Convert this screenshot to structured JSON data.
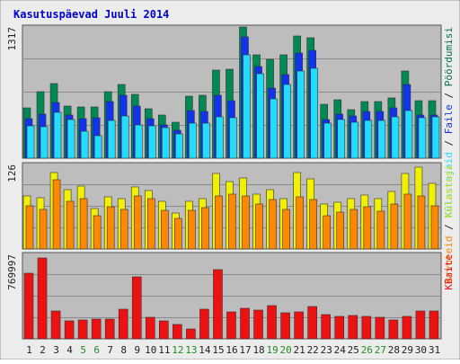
{
  "title": "Kasutuspäevad Juuli 2014",
  "colors": {
    "frame": "#ececec",
    "panel": "#bdbdbd",
    "grid": "#8a8a8a",
    "title": "#0000cc",
    "weekend_day": "#228b22",
    "weekday": "#222222",
    "pages_ink": "#006f4a",
    "hits": "#ff8800",
    "sites": "#f0f000"
  },
  "chart_data": [
    {
      "type": "bar",
      "panel": "visits",
      "ytick_label": "1317",
      "ymax": 1317,
      "x": [
        "1",
        "2",
        "3",
        "4",
        "5",
        "6",
        "7",
        "8",
        "9",
        "10",
        "11",
        "12",
        "13",
        "14",
        "15",
        "16",
        "17",
        "18",
        "19",
        "20",
        "21",
        "22",
        "23",
        "24",
        "25",
        "26",
        "27",
        "28",
        "29",
        "30",
        "31"
      ],
      "weekend_days": [
        "5",
        "6",
        "12",
        "13",
        "19",
        "20",
        "26",
        "27"
      ],
      "series": [
        {
          "name": "Pöördumisi",
          "color": "#008855",
          "values": [
            500,
            660,
            740,
            520,
            510,
            510,
            660,
            730,
            630,
            490,
            430,
            360,
            610,
            620,
            870,
            880,
            1300,
            1020,
            980,
            1020,
            1210,
            1190,
            530,
            580,
            480,
            560,
            560,
            600,
            860,
            570,
            570
          ]
        },
        {
          "name": "Faile",
          "color": "#1133ee",
          "values": [
            390,
            440,
            550,
            430,
            390,
            400,
            560,
            620,
            520,
            390,
            330,
            280,
            470,
            460,
            620,
            570,
            1200,
            910,
            690,
            830,
            1040,
            1070,
            380,
            440,
            420,
            460,
            460,
            500,
            730,
            430,
            430
          ]
        },
        {
          "name": "Külastajaid",
          "color": "#22ddff",
          "values": [
            320,
            310,
            450,
            380,
            270,
            220,
            370,
            420,
            330,
            320,
            300,
            240,
            350,
            350,
            410,
            400,
            1020,
            840,
            590,
            730,
            860,
            890,
            350,
            380,
            360,
            370,
            370,
            410,
            470,
            400,
            410
          ]
        }
      ]
    },
    {
      "type": "bar",
      "panel": "sites-hits",
      "ytick_label": "126",
      "ymax": 126,
      "series": [
        {
          "name": "Külastusi",
          "color": "#f0f000",
          "values": [
            77,
            75,
            111,
            86,
            92,
            59,
            76,
            73,
            90,
            85,
            70,
            53,
            70,
            74,
            110,
            98,
            104,
            80,
            87,
            74,
            112,
            102,
            65,
            68,
            73,
            79,
            73,
            84,
            110,
            120,
            96
          ]
        },
        {
          "name": "Arvuteid",
          "color": "#ff8800",
          "values": [
            63,
            58,
            101,
            70,
            73,
            48,
            62,
            58,
            78,
            73,
            56,
            44,
            57,
            60,
            78,
            80,
            78,
            66,
            72,
            58,
            76,
            72,
            49,
            54,
            58,
            62,
            55,
            66,
            80,
            77,
            63
          ]
        }
      ]
    },
    {
      "type": "bar",
      "panel": "traffic",
      "ytick_label": "769997",
      "ymax": 769997,
      "series": [
        {
          "name": "KBaite",
          "color": "#ee1111",
          "values": [
            584000,
            724000,
            246000,
            162000,
            172000,
            174000,
            178000,
            263000,
            550000,
            191000,
            160000,
            128000,
            88000,
            264000,
            620000,
            240000,
            270000,
            260000,
            300000,
            230000,
            240000,
            290000,
            220000,
            200000,
            210000,
            200000,
            190000,
            170000,
            200000,
            250000,
            250000
          ]
        }
      ]
    }
  ],
  "legend": {
    "top": [
      {
        "text": "Külastajaid",
        "color": "#22ddff"
      },
      {
        "text": " / ",
        "color": "#222222"
      },
      {
        "text": "Faile",
        "color": "#1133ee"
      },
      {
        "text": " / ",
        "color": "#222222"
      },
      {
        "text": "Pöördumisi",
        "color": "#006f4a"
      }
    ],
    "middle": [
      {
        "text": "Arvuteid",
        "color": "#ff8800"
      },
      {
        "text": " / ",
        "color": "#222222"
      },
      {
        "text": "Külastusi",
        "color": "#dddd00"
      }
    ],
    "bottom": [
      {
        "text": "KBaite",
        "color": "#ee1111"
      }
    ]
  }
}
